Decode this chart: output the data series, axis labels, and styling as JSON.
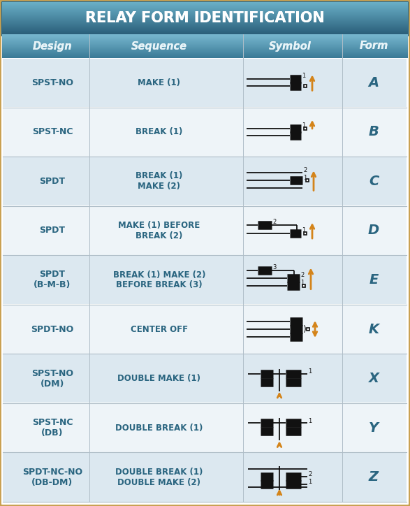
{
  "title": "RELAY FORM IDENTIFICATION",
  "headers": [
    "Design",
    "Sequence",
    "Symbol",
    "Form"
  ],
  "rows": [
    {
      "design": "SPST-NO",
      "sequence": "MAKE (1)",
      "form": "A",
      "symbol_type": "A"
    },
    {
      "design": "SPST-NC",
      "sequence": "BREAK (1)",
      "form": "B",
      "symbol_type": "B"
    },
    {
      "design": "SPDT",
      "sequence": "BREAK (1)\nMAKE (2)",
      "form": "C",
      "symbol_type": "C"
    },
    {
      "design": "SPDT",
      "sequence": "MAKE (1) BEFORE\nBREAK (2)",
      "form": "D",
      "symbol_type": "D"
    },
    {
      "design": "SPDT\n(B-M-B)",
      "sequence": "BREAK (1) MAKE (2)\nBEFORE BREAK (3)",
      "form": "E",
      "symbol_type": "E"
    },
    {
      "design": "SPDT-NO",
      "sequence": "CENTER OFF",
      "form": "K",
      "symbol_type": "K"
    },
    {
      "design": "SPST-NO\n(DM)",
      "sequence": "DOUBLE MAKE (1)",
      "form": "X",
      "symbol_type": "X"
    },
    {
      "design": "SPST-NC\n(DB)",
      "sequence": "DOUBLE BREAK (1)",
      "form": "Y",
      "symbol_type": "Y"
    },
    {
      "design": "SPDT-NC-NO\n(DB-DM)",
      "sequence": "DOUBLE BREAK (1)\nDOUBLE MAKE (2)",
      "form": "Z",
      "symbol_type": "Z"
    }
  ],
  "title_bg_top": "#4a8faa",
  "title_bg_bottom": "#2d6b8a",
  "header_bg_top": "#5ba0bb",
  "header_bg_bottom": "#3a7a96",
  "row_bg_light": "#dce8f0",
  "row_bg_white": "#eef4f8",
  "border_color": "#b0bec8",
  "title_color": "#ffffff",
  "header_color": "#e8f4f8",
  "design_color": "#2a6580",
  "sequence_color": "#2a6580",
  "form_color": "#2a6580",
  "arrow_color": "#d4841a",
  "symbol_color": "#111111",
  "outer_border": "#c8a050",
  "outer_bg": "#c0ccd4"
}
